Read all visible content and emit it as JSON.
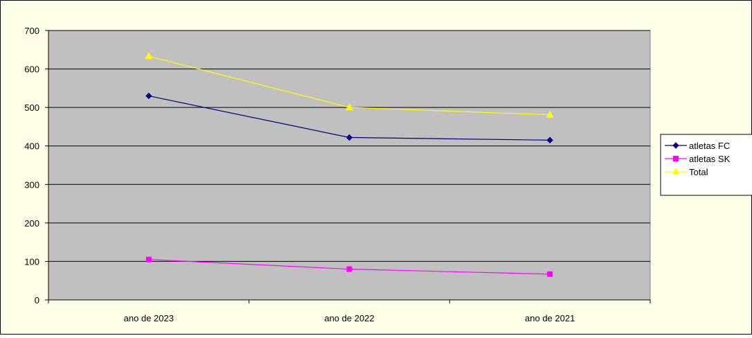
{
  "colors": {
    "chart_area_bg": "#ffffe8",
    "plot_bg": "#c0c0c0",
    "border": "#000000"
  },
  "chart_data": {
    "type": "line",
    "title": "",
    "xlabel": "",
    "ylabel": "",
    "categories": [
      "ano de 2023",
      "ano de 2022",
      "ano de 2021"
    ],
    "ylim": [
      0,
      700
    ],
    "yticks": [
      0,
      100,
      200,
      300,
      400,
      500,
      600,
      700
    ],
    "grid": true,
    "legend_position": "right",
    "series": [
      {
        "name": "atletas FC",
        "values": [
          530,
          422,
          415
        ],
        "color": "#000080",
        "marker": "diamond"
      },
      {
        "name": "atletas SK",
        "values": [
          105,
          80,
          67
        ],
        "color": "#ff00ff",
        "marker": "square"
      },
      {
        "name": "Total",
        "values": [
          633,
          500,
          481
        ],
        "color": "#ffff00",
        "marker": "triangle"
      }
    ]
  }
}
